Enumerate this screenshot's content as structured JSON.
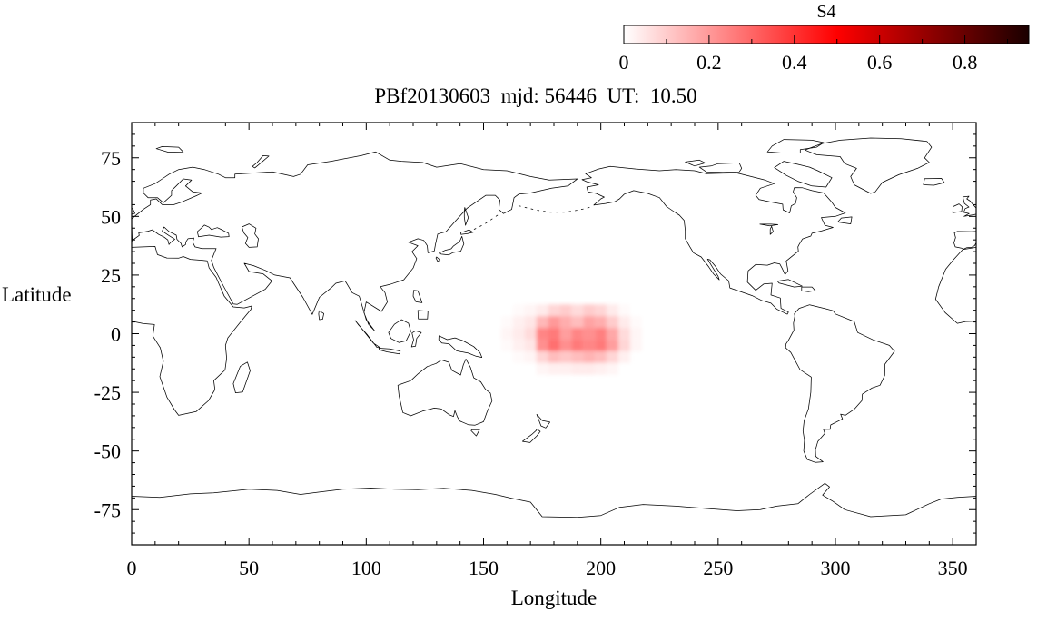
{
  "chart_data": {
    "type": "heatmap",
    "title": "PBf20130603  mjd: 56446  UT:  10.50",
    "xlabel": "Longitude",
    "ylabel": "Latitude",
    "xlim": [
      0,
      360
    ],
    "ylim": [
      -90,
      90
    ],
    "x_major_ticks": [
      0,
      50,
      100,
      150,
      200,
      250,
      300,
      350
    ],
    "x_minor_step": 10,
    "y_major_ticks": [
      75,
      50,
      25,
      0,
      -25,
      -50,
      -75
    ],
    "y_minor_step": 5,
    "grid": false,
    "frame_color": "#000000",
    "coastline_color": "#000000",
    "colorbar": {
      "label": "S4",
      "min": 0,
      "max": 0.95,
      "major_ticks": [
        0,
        0.2,
        0.4,
        0.6,
        0.8
      ],
      "minor_step": 0.1,
      "gradient": [
        "#ffffff",
        "#ff0000",
        "#1a0000"
      ],
      "orientation": "horizontal",
      "position": "top-right"
    },
    "heatmap": {
      "units": "S4 index",
      "cell_size_deg": 5,
      "lons": [
        160,
        165,
        170,
        175,
        180,
        185,
        190,
        195,
        200,
        205,
        210,
        215
      ],
      "lats": [
        10,
        5,
        0,
        -5,
        -10,
        -15
      ],
      "values": [
        [
          0,
          0.01,
          0.02,
          0.04,
          0.08,
          0.1,
          0.07,
          0.1,
          0.08,
          0.04,
          0.01,
          0
        ],
        [
          0.01,
          0.03,
          0.05,
          0.14,
          0.2,
          0.16,
          0.13,
          0.18,
          0.16,
          0.1,
          0.04,
          0.01
        ],
        [
          0.02,
          0.04,
          0.07,
          0.24,
          0.26,
          0.19,
          0.24,
          0.22,
          0.25,
          0.17,
          0.07,
          0.02
        ],
        [
          0.01,
          0.03,
          0.05,
          0.22,
          0.28,
          0.22,
          0.26,
          0.24,
          0.26,
          0.19,
          0.08,
          0.02
        ],
        [
          0,
          0.01,
          0.02,
          0.08,
          0.13,
          0.11,
          0.13,
          0.15,
          0.13,
          0.08,
          0.03,
          0
        ],
        [
          0,
          0,
          0,
          0.02,
          0.03,
          0.03,
          0.04,
          0.04,
          0.03,
          0.02,
          0,
          0
        ]
      ]
    }
  }
}
